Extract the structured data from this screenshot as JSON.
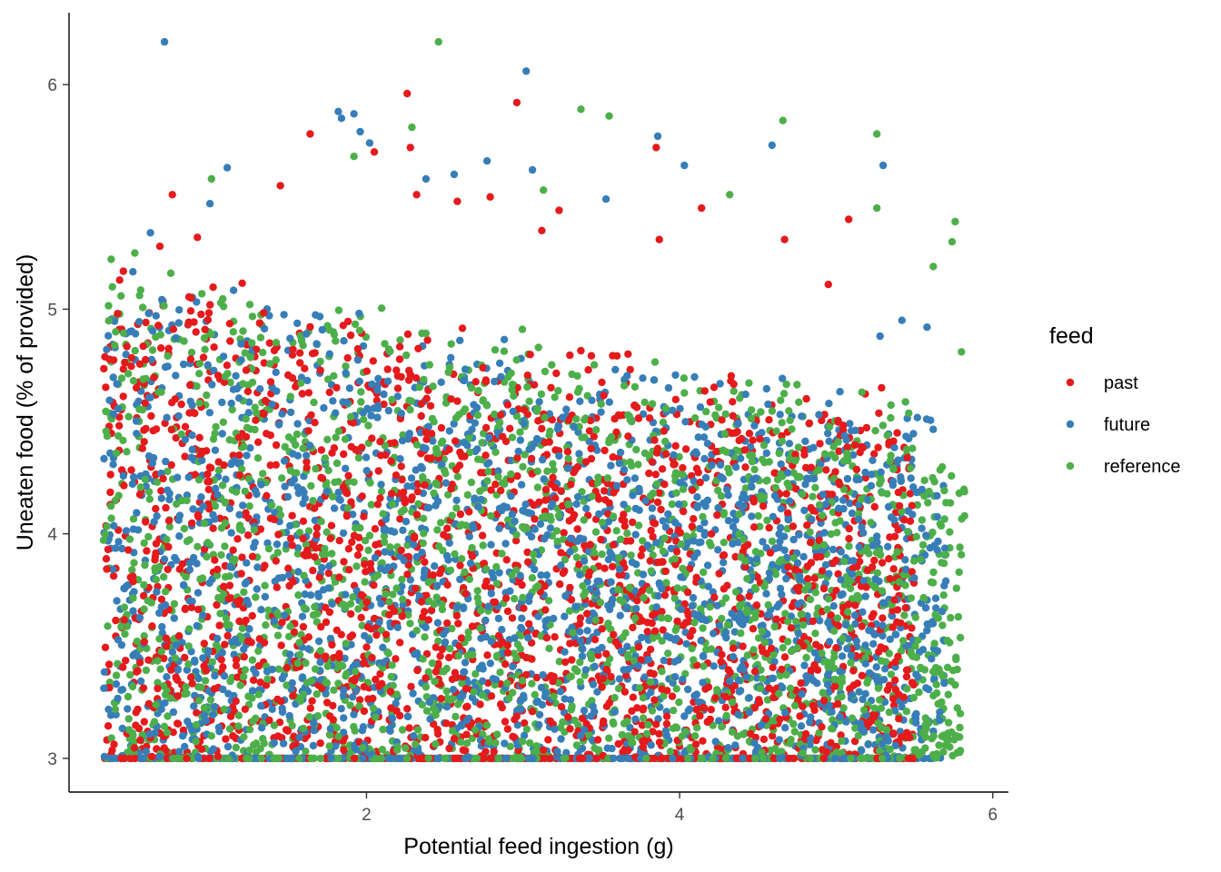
{
  "chart_data": {
    "type": "scatter",
    "title": "",
    "xlabel": "Potential feed ingestion (g)",
    "ylabel": "Uneaten food (% of provided)",
    "xlim": [
      0.1,
      6.1
    ],
    "ylim": [
      2.85,
      6.32
    ],
    "x_ticks": [
      2,
      4,
      6
    ],
    "y_ticks": [
      3,
      4,
      5,
      6
    ],
    "x_tick_labels": [
      "2",
      "4",
      "6"
    ],
    "y_tick_labels": [
      "3",
      "4",
      "5",
      "6"
    ],
    "grid": false,
    "legend": {
      "title": "feed",
      "position": "right"
    },
    "series": [
      {
        "name": "past",
        "color": "#e41a1c",
        "x_range": [
          0.32,
          5.5
        ],
        "y_floor": 3.0,
        "points": [
          [
            2.26,
            5.96
          ],
          [
            2.96,
            5.92
          ],
          [
            1.64,
            5.78
          ],
          [
            2.28,
            5.72
          ],
          [
            3.85,
            5.72
          ],
          [
            2.05,
            5.7
          ],
          [
            1.45,
            5.55
          ],
          [
            0.76,
            5.51
          ],
          [
            2.32,
            5.51
          ],
          [
            2.79,
            5.5
          ],
          [
            2.58,
            5.48
          ],
          [
            3.23,
            5.44
          ],
          [
            4.14,
            5.45
          ],
          [
            5.08,
            5.4
          ],
          [
            3.12,
            5.35
          ],
          [
            0.92,
            5.32
          ],
          [
            0.68,
            5.28
          ],
          [
            3.87,
            5.31
          ],
          [
            4.67,
            5.31
          ],
          [
            0.41,
            4.98
          ],
          [
            0.88,
            5.05
          ],
          [
            4.95,
            5.11
          ],
          [
            5.29,
            4.65
          ],
          [
            0.53,
            4.65
          ],
          [
            2.54,
            4.6
          ]
        ]
      },
      {
        "name": "future",
        "color": "#377eb8",
        "x_range": [
          0.32,
          5.7
        ],
        "y_floor": 3.0,
        "points": [
          [
            0.71,
            6.19
          ],
          [
            3.02,
            6.06
          ],
          [
            1.82,
            5.88
          ],
          [
            1.96,
            5.79
          ],
          [
            1.84,
            5.85
          ],
          [
            1.92,
            5.87
          ],
          [
            2.02,
            5.74
          ],
          [
            3.86,
            5.77
          ],
          [
            4.03,
            5.64
          ],
          [
            4.59,
            5.73
          ],
          [
            5.3,
            5.64
          ],
          [
            1.11,
            5.63
          ],
          [
            3.06,
            5.62
          ],
          [
            2.77,
            5.66
          ],
          [
            2.38,
            5.58
          ],
          [
            2.56,
            5.6
          ],
          [
            3.53,
            5.49
          ],
          [
            0.62,
            5.34
          ],
          [
            5.28,
            4.88
          ],
          [
            5.42,
            4.95
          ],
          [
            5.58,
            4.92
          ],
          [
            0.49,
            4.9
          ],
          [
            1.0,
            5.47
          ]
        ]
      },
      {
        "name": "reference",
        "color": "#4daf4a",
        "x_range": [
          0.32,
          5.82
        ],
        "y_floor": 3.0,
        "points": [
          [
            2.46,
            6.19
          ],
          [
            3.37,
            5.89
          ],
          [
            3.55,
            5.86
          ],
          [
            4.66,
            5.84
          ],
          [
            5.26,
            5.78
          ],
          [
            2.29,
            5.81
          ],
          [
            1.92,
            5.68
          ],
          [
            4.32,
            5.51
          ],
          [
            3.13,
            5.53
          ],
          [
            5.76,
            5.39
          ],
          [
            5.74,
            5.3
          ],
          [
            5.8,
            4.81
          ],
          [
            5.26,
            5.45
          ],
          [
            1.01,
            5.58
          ],
          [
            0.52,
            5.25
          ],
          [
            0.75,
            5.16
          ],
          [
            5.62,
            5.19
          ],
          [
            5.82,
            4.08
          ],
          [
            5.79,
            3.94
          ],
          [
            5.78,
            3.63
          ]
        ]
      }
    ]
  }
}
